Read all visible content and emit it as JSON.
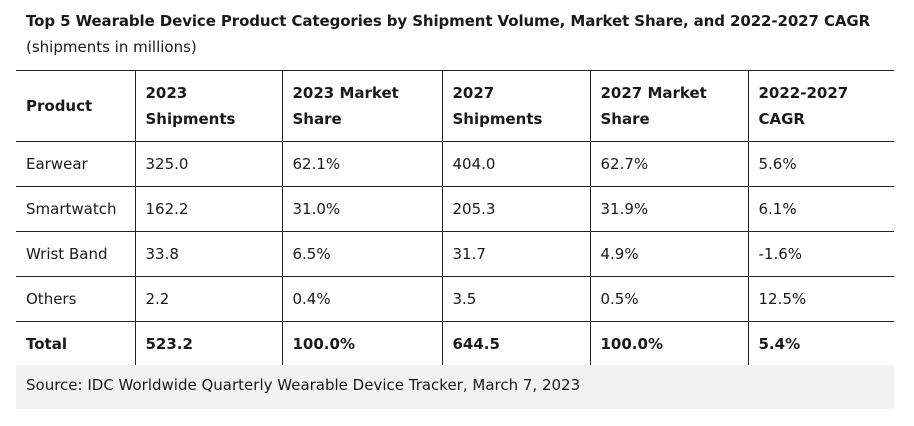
{
  "title": "Top 5 Wearable Device Product Categories by Shipment Volume, Market Share, and 2022-2027 CAGR",
  "subtitle": "(shipments in millions)",
  "table": {
    "headers": [
      "Product",
      "2023 Shipments",
      "2023 Market Share",
      "2027 Shipments",
      "2027 Market Share",
      "2022-2027 CAGR"
    ],
    "rows": [
      [
        "Earwear",
        "325.0",
        "62.1%",
        "404.0",
        "62.7%",
        "5.6%"
      ],
      [
        "Smartwatch",
        "162.2",
        "31.0%",
        "205.3",
        "31.9%",
        "6.1%"
      ],
      [
        "Wrist Band",
        "33.8",
        "6.5%",
        "31.7",
        "4.9%",
        "-1.6%"
      ],
      [
        "Others",
        "2.2",
        "0.4%",
        "3.5",
        "0.5%",
        "12.5%"
      ],
      [
        "Total",
        "523.2",
        "100.0%",
        "644.5",
        "100.0%",
        "5.4%"
      ]
    ]
  },
  "source": "Source: IDC Worldwide Quarterly Wearable Device Tracker, March 7, 2023"
}
